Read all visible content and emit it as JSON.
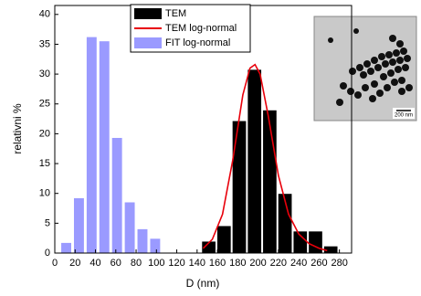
{
  "chart_data": {
    "type": "histogram",
    "xlabel": "D (nm)",
    "ylabel": "relativni %",
    "xlim": [
      0,
      292
    ],
    "xticks": [
      0,
      20,
      40,
      60,
      80,
      100,
      120,
      140,
      160,
      180,
      200,
      220,
      240,
      260,
      280
    ],
    "ylim": [
      0,
      41.5
    ],
    "yticks": [
      0,
      5,
      10,
      15,
      20,
      25,
      30,
      35,
      40
    ],
    "legend": "top-center",
    "inset_scale_label": "200 nm",
    "series": [
      {
        "name": "TEM",
        "type": "histogram",
        "color": "#000000",
        "bins": [
          144,
          159,
          174,
          189,
          204,
          219,
          234,
          249,
          264,
          279
        ],
        "values": [
          2,
          4.6,
          22.2,
          30.8,
          24,
          10,
          3.7,
          3.7,
          1.2
        ]
      },
      {
        "name": "TEM log-normal",
        "type": "line",
        "color": "#e8000b",
        "x": [
          146,
          155,
          165,
          175,
          185,
          192,
          197,
          202,
          210,
          220,
          230,
          240,
          250,
          260,
          268
        ],
        "values": [
          0.8,
          2.3,
          6.5,
          15.5,
          26.5,
          31,
          31.6,
          30,
          23,
          13,
          6.5,
          3.2,
          1.6,
          0.8,
          0.4
        ]
      },
      {
        "name": "FIT log-normal",
        "type": "histogram",
        "color": "#9a9aff",
        "bins": [
          5,
          17.5,
          30,
          42.5,
          55,
          67.5,
          80,
          92.5,
          105
        ],
        "values": [
          1.7,
          9.2,
          36.2,
          35.5,
          19.3,
          8.5,
          4,
          2.4
        ]
      }
    ]
  }
}
